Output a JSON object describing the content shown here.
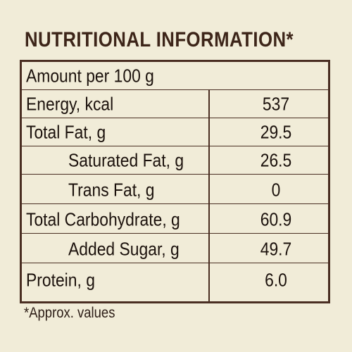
{
  "title": "NUTRITIONAL INFORMATION*",
  "table": {
    "header": "Amount per 100 g",
    "rows": [
      {
        "label": "Energy, kcal",
        "value": "537"
      },
      {
        "label": "Total Fat, g",
        "value": "29.5"
      },
      {
        "label": "Saturated Fat, g",
        "value": "26.5"
      },
      {
        "label": "Trans Fat, g",
        "value": "0"
      },
      {
        "label": "Total Carbohydrate, g",
        "value": "60.9"
      },
      {
        "label": "Added Sugar, g",
        "value": "49.7"
      },
      {
        "label": "Protein, g",
        "value": "6.0"
      }
    ]
  },
  "footnote": "*Approx. values",
  "colors": {
    "background": "#f1ecd8",
    "border": "#4a2e22",
    "title": "#3d2519",
    "text": "#1c120d"
  }
}
